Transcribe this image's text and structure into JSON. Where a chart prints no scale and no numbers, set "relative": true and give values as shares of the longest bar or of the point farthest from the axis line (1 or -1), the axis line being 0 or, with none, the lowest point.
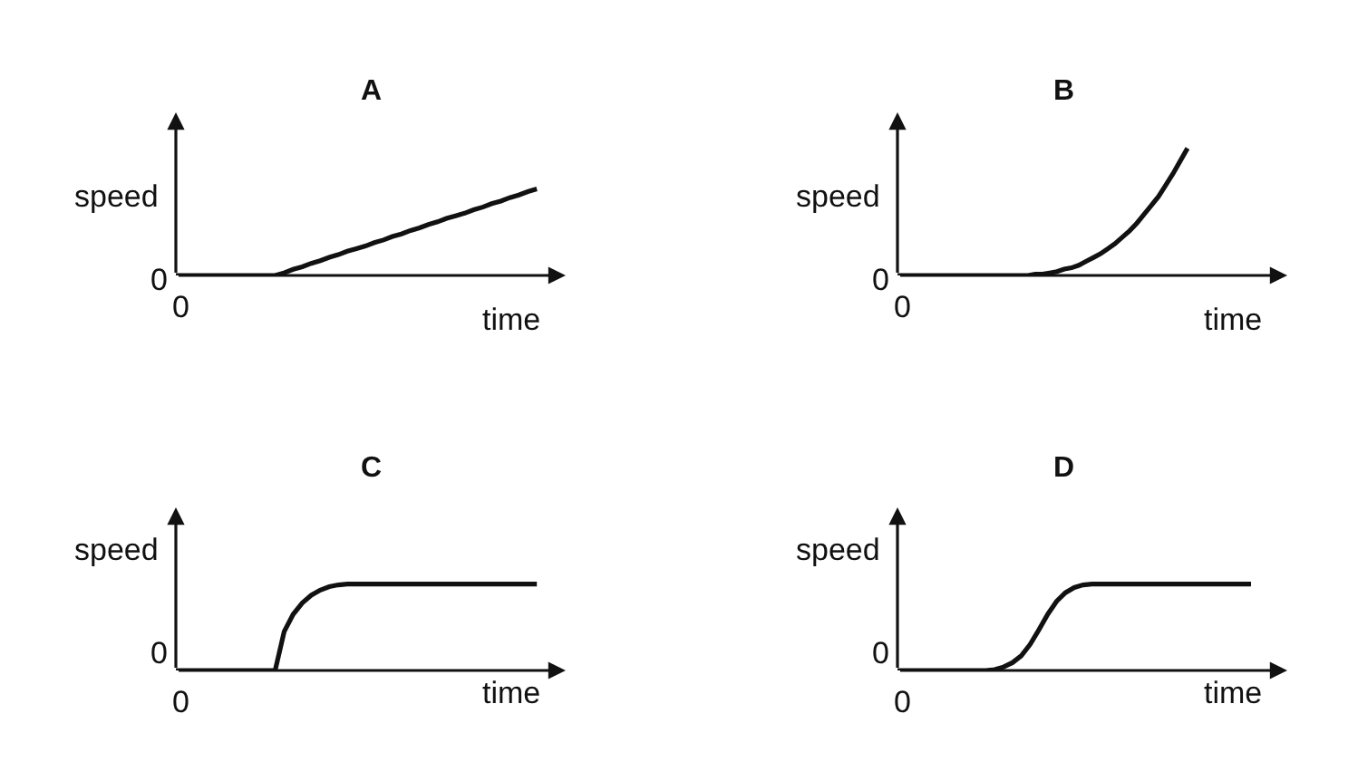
{
  "chart_data": [
    {
      "type": "line",
      "title": "A",
      "xlabel": "time",
      "ylabel": "speed",
      "relative": true,
      "annotations": [
        "0",
        "0"
      ],
      "categories": [
        null,
        null,
        null,
        null,
        null,
        null,
        null,
        null,
        null,
        null,
        null,
        null,
        null,
        null,
        null,
        null,
        null,
        null,
        null,
        null,
        null,
        null,
        null,
        null,
        null,
        null,
        null,
        null,
        null,
        null,
        null,
        null,
        null,
        null,
        null,
        null,
        null,
        null,
        null,
        null,
        null
      ],
      "series": [
        {
          "color": "#111111",
          "values": [
            0,
            0,
            0,
            0,
            0,
            0,
            0,
            0,
            0,
            0,
            0,
            0,
            0.03,
            0.07,
            0.1,
            0.14,
            0.17,
            0.21,
            0.24,
            0.28,
            0.31,
            0.34,
            0.38,
            0.41,
            0.45,
            0.48,
            0.52,
            0.55,
            0.59,
            0.62,
            0.66,
            0.69,
            0.72,
            0.76,
            0.79,
            0.83,
            0.86,
            0.9,
            0.93,
            0.97,
            1
          ]
        }
      ]
    },
    {
      "type": "line",
      "title": "B",
      "xlabel": "time",
      "ylabel": "speed",
      "relative": true,
      "annotations": [
        "0",
        "0"
      ],
      "categories": [
        null,
        null,
        null,
        null,
        null,
        null,
        null,
        null,
        null,
        null,
        null,
        null,
        null,
        null,
        null,
        null,
        null,
        null,
        null,
        null,
        null,
        null,
        null,
        null,
        null,
        null,
        null,
        null,
        null,
        null,
        null,
        null,
        null,
        null,
        null,
        null,
        null,
        null,
        null,
        null,
        null
      ],
      "series": [
        {
          "color": "#111111",
          "values": [
            0,
            0,
            0,
            0,
            0,
            0,
            0,
            0,
            0,
            0,
            0,
            0,
            0,
            0,
            0,
            0,
            0,
            0,
            0,
            0.01,
            0.01,
            0.02,
            0.03,
            0.05,
            0.06,
            0.08,
            0.11,
            0.14,
            0.17,
            0.21,
            0.25,
            0.3,
            0.35,
            0.41,
            0.48,
            0.55,
            0.62,
            0.71,
            0.8,
            0.9,
            1
          ]
        }
      ]
    },
    {
      "type": "line",
      "title": "C",
      "xlabel": "time",
      "ylabel": "speed",
      "relative": true,
      "annotations": [
        "0",
        "0"
      ],
      "categories": [
        null,
        null,
        null,
        null,
        null,
        null,
        null,
        null,
        null,
        null,
        null,
        null,
        null,
        null,
        null,
        null,
        null,
        null,
        null,
        null,
        null,
        null,
        null,
        null,
        null,
        null,
        null,
        null,
        null,
        null,
        null,
        null,
        null,
        null,
        null,
        null,
        null,
        null,
        null,
        null,
        null
      ],
      "series": [
        {
          "color": "#111111",
          "values": [
            0,
            0,
            0,
            0,
            0,
            0,
            0,
            0,
            0,
            0,
            0,
            0,
            0.45,
            0.65,
            0.78,
            0.87,
            0.93,
            0.97,
            0.99,
            1,
            1,
            1,
            1,
            1,
            1,
            1,
            1,
            1,
            1,
            1,
            1,
            1,
            1,
            1,
            1,
            1,
            1,
            1,
            1,
            1,
            1
          ]
        }
      ]
    },
    {
      "type": "line",
      "title": "D",
      "xlabel": "time",
      "ylabel": "speed",
      "relative": true,
      "annotations": [
        "0",
        "0"
      ],
      "categories": [
        null,
        null,
        null,
        null,
        null,
        null,
        null,
        null,
        null,
        null,
        null,
        null,
        null,
        null,
        null,
        null,
        null,
        null,
        null,
        null,
        null,
        null,
        null,
        null,
        null,
        null,
        null,
        null,
        null,
        null,
        null,
        null,
        null,
        null,
        null,
        null,
        null,
        null,
        null,
        null,
        null
      ],
      "series": [
        {
          "color": "#111111",
          "values": [
            0,
            0,
            0,
            0,
            0,
            0,
            0,
            0,
            0,
            0,
            0,
            0.01,
            0.04,
            0.09,
            0.17,
            0.3,
            0.47,
            0.65,
            0.8,
            0.9,
            0.96,
            0.99,
            1,
            1,
            1,
            1,
            1,
            1,
            1,
            1,
            1,
            1,
            1,
            1,
            1,
            1,
            1,
            1,
            1,
            1,
            1
          ]
        }
      ]
    }
  ]
}
